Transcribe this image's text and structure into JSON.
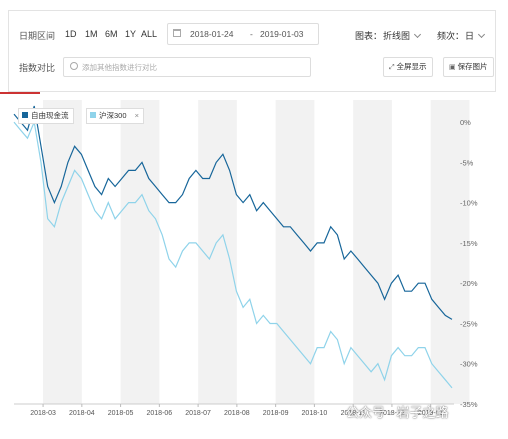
{
  "controls": {
    "date_range_label": "日期区间",
    "ranges": [
      "1D",
      "1M",
      "6M",
      "1Y",
      "ALL"
    ],
    "start_date": "2018-01-24",
    "date_sep": "-",
    "end_date": "2019-01-03",
    "chart_type_label": "图表：",
    "chart_type_value": "折线图",
    "frequency_label": "频次：",
    "frequency_value": "日",
    "index_compare_label": "指数对比",
    "search_placeholder": "添加其他指数进行对比",
    "fullscreen_label": "全屏显示",
    "save_label": "保存图片"
  },
  "colors": {
    "series1": "#17669a",
    "series2": "#8fd3ea",
    "accent": "#cc3333",
    "band": "#f2f2f2"
  },
  "chart_data": {
    "type": "line",
    "x_tick_labels": [
      "2018-03",
      "2018-04",
      "2018-05",
      "2018-06",
      "2018-07",
      "2018-08",
      "2018-09",
      "2018-10",
      "2018-11",
      "2018-12",
      "2019-01"
    ],
    "y_ticks": [
      0,
      -5,
      -10,
      -15,
      -20,
      -25,
      -30,
      -35
    ],
    "y_tick_labels": [
      "0%",
      "-5%",
      "-10%",
      "-15%",
      "-20%",
      "-25%",
      "-30%",
      "-35%"
    ],
    "ylim": [
      -35,
      2
    ],
    "legend_placement": "top-left",
    "series": [
      {
        "name": "自由现金流",
        "color": "#17669a",
        "values": [
          1,
          0,
          -1,
          2,
          -3,
          -8,
          -10,
          -8,
          -5,
          -3,
          -4,
          -6,
          -8,
          -9,
          -7,
          -8,
          -7,
          -6,
          -6,
          -5,
          -7,
          -8,
          -9,
          -10,
          -10,
          -9,
          -7,
          -6,
          -7,
          -7,
          -5,
          -4,
          -6,
          -9,
          -10,
          -9,
          -11,
          -10,
          -11,
          -12,
          -13,
          -13,
          -14,
          -15,
          -16,
          -15,
          -15,
          -13,
          -14,
          -17,
          -16,
          -17,
          -18,
          -19,
          -20,
          -22,
          -20,
          -19,
          -21,
          -21,
          -20,
          -20,
          -22,
          -23,
          -24,
          -24.5
        ]
      },
      {
        "name": "沪深300",
        "color": "#8fd3ea",
        "values": [
          0,
          -1,
          -2,
          0,
          -5,
          -12,
          -13,
          -10,
          -8,
          -6,
          -7,
          -9,
          -11,
          -12,
          -10,
          -12,
          -11,
          -10,
          -10,
          -9,
          -11,
          -12,
          -14,
          -17,
          -18,
          -16,
          -15,
          -15,
          -16,
          -17,
          -15,
          -14,
          -17,
          -21,
          -23,
          -22,
          -25,
          -24,
          -25,
          -25,
          -26,
          -27,
          -28,
          -29,
          -30,
          -28,
          -28,
          -26,
          -27,
          -30,
          -28,
          -29,
          -30,
          -31,
          -30,
          -32,
          -29,
          -28,
          -29,
          -29,
          -28,
          -28,
          -30,
          -31,
          -32,
          -33
        ]
      }
    ]
  },
  "watermark": "公众号 · 岩子之路"
}
